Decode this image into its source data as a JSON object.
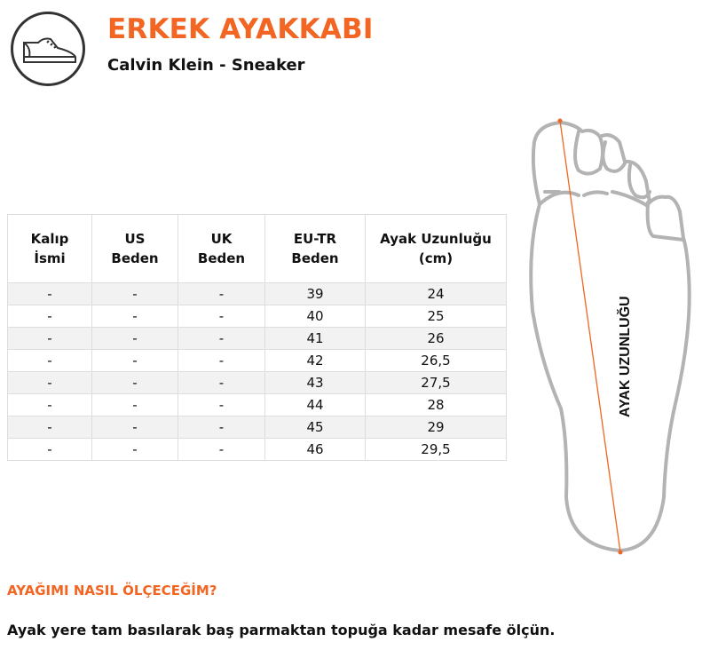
{
  "header": {
    "icon": "sneaker-icon",
    "title": "ERKEK AYAKKABI",
    "subtitle": "Calvin Klein - Sneaker"
  },
  "table": {
    "columns": [
      [
        "Kalıp",
        "İsmi"
      ],
      [
        "US",
        "Beden"
      ],
      [
        "UK",
        "Beden"
      ],
      [
        "EU-TR",
        "Beden"
      ],
      [
        "Ayak Uzunluğu",
        "(cm)"
      ]
    ],
    "rows": [
      [
        "-",
        "-",
        "-",
        "39",
        "24"
      ],
      [
        "-",
        "-",
        "-",
        "40",
        "25"
      ],
      [
        "-",
        "-",
        "-",
        "41",
        "26"
      ],
      [
        "-",
        "-",
        "-",
        "42",
        "26,5"
      ],
      [
        "-",
        "-",
        "-",
        "43",
        "27,5"
      ],
      [
        "-",
        "-",
        "-",
        "44",
        "28"
      ],
      [
        "-",
        "-",
        "-",
        "45",
        "29"
      ],
      [
        "-",
        "-",
        "-",
        "46",
        "29,5"
      ]
    ]
  },
  "diagram": {
    "label": "AYAK UZUNLUĞU",
    "accent_color": "#f26522",
    "outline_color": "#b3b3b3"
  },
  "instructions": {
    "heading": "AYAĞIMI NASIL ÖLÇECEĞİM?",
    "text": "Ayak yere tam basılarak baş parmaktan topuğa kadar mesafe ölçün."
  }
}
